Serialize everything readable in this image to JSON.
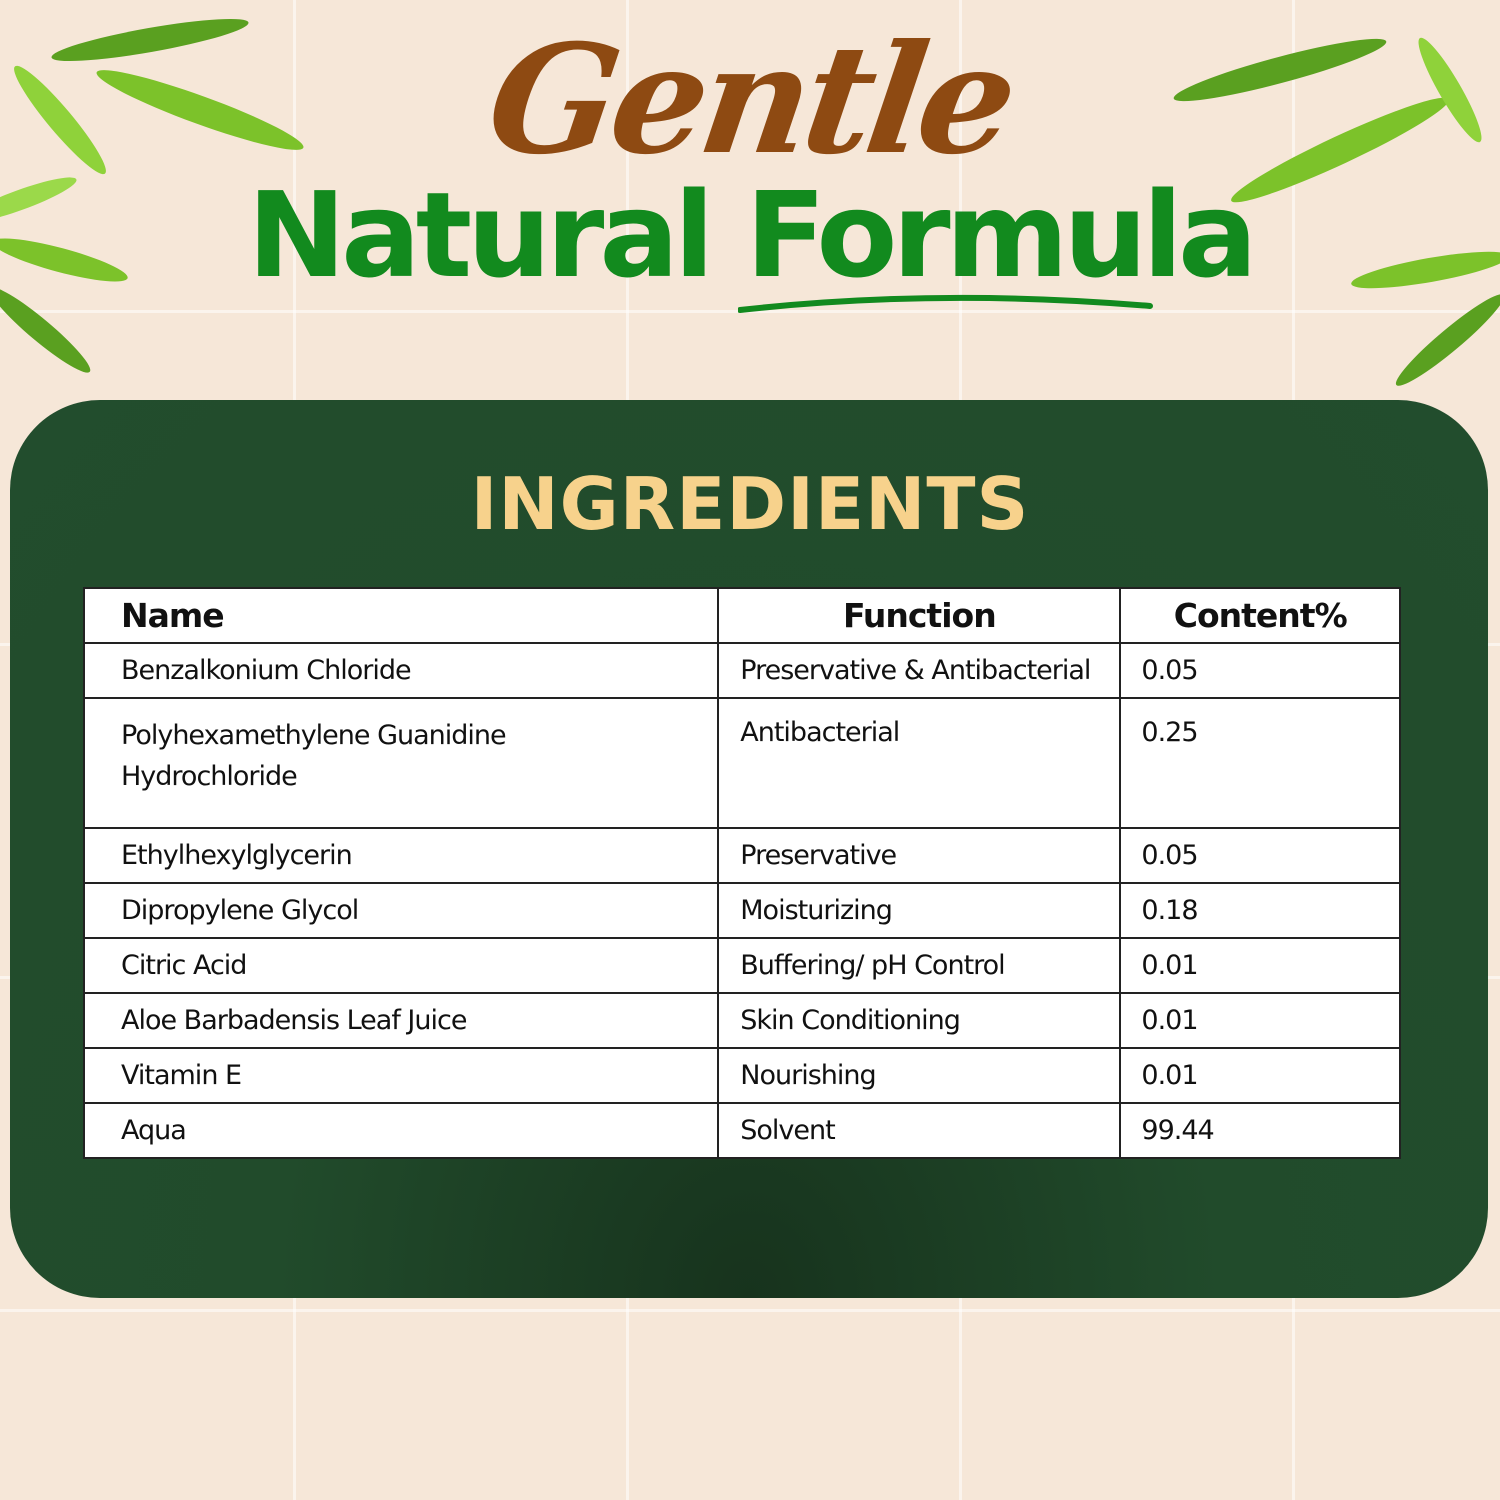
{
  "header": {
    "script_title": "Gentle",
    "title": "Natural Formula"
  },
  "panel": {
    "heading": "INGREDIENTS"
  },
  "table": {
    "columns": [
      "Name",
      "Function",
      "Content%"
    ],
    "rows": [
      {
        "name": "Benzalkonium Chloride",
        "function": "Preservative & Antibacterial",
        "content": "0.05"
      },
      {
        "name": "Polyhexamethylene Guanidine Hydrochloride",
        "function": "Antibacterial",
        "content": "0.25"
      },
      {
        "name": "Ethylhexylglycerin",
        "function": "Preservative",
        "content": "0.05"
      },
      {
        "name": "Dipropylene Glycol",
        "function": "Moisturizing",
        "content": "0.18"
      },
      {
        "name": "Citric Acid",
        "function": "Buffering/ pH Control",
        "content": "0.01"
      },
      {
        "name": "Aloe Barbadensis Leaf Juice",
        "function": "Skin Conditioning",
        "content": "0.01"
      },
      {
        "name": "Vitamin E",
        "function": "Nourishing",
        "content": "0.01"
      },
      {
        "name": "Aqua",
        "function": "Solvent",
        "content": "99.44"
      }
    ]
  },
  "colors": {
    "title_green": "#128a1e",
    "script_brown": "#8e4a12",
    "panel_green": "#224d2d",
    "heading_gold": "#f7d28c"
  }
}
